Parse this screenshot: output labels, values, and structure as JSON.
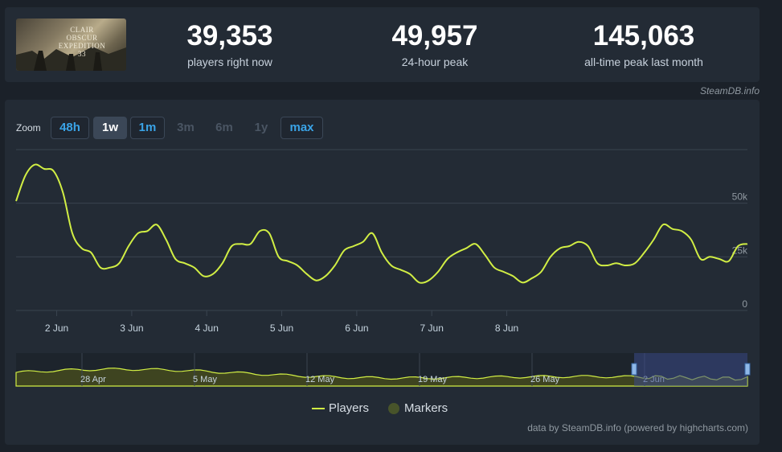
{
  "game": {
    "title_text": "CLAIR OBSCUR EXPEDITION 33"
  },
  "stats": [
    {
      "value": "39,353",
      "label": "players right now"
    },
    {
      "value": "49,957",
      "label": "24-hour peak"
    },
    {
      "value": "145,063",
      "label": "all-time peak last month"
    }
  ],
  "source_link": "SteamDB.info",
  "zoom": {
    "label": "Zoom",
    "buttons": [
      {
        "label": "48h",
        "state": "enabled"
      },
      {
        "label": "1w",
        "state": "active"
      },
      {
        "label": "1m",
        "state": "enabled"
      },
      {
        "label": "3m",
        "state": "disabled"
      },
      {
        "label": "6m",
        "state": "disabled"
      },
      {
        "label": "1y",
        "state": "disabled"
      },
      {
        "label": "max",
        "state": "enabled"
      }
    ]
  },
  "legend": {
    "players": "Players",
    "markers": "Markers"
  },
  "footer": "data by SteamDB.info (powered by highcharts.com)",
  "colors": {
    "line": "#d1ee44",
    "markers": "#48542a",
    "navigator_fill": "#3e4420",
    "navigator_selection": "#3a4a8a",
    "grid": "#3a4450",
    "background": "#232b35"
  },
  "chart_data": {
    "type": "line",
    "series": [
      {
        "name": "Players"
      }
    ],
    "x_start": "2025-06-01T11:00",
    "x_step_hours": 3,
    "values": [
      51000,
      63000,
      68000,
      66000,
      65000,
      55000,
      36000,
      29000,
      27000,
      20000,
      20000,
      22000,
      30000,
      36000,
      37000,
      40000,
      33000,
      24000,
      22000,
      20000,
      16000,
      17000,
      22000,
      30000,
      31000,
      31000,
      37000,
      36000,
      25000,
      23000,
      21000,
      17000,
      14000,
      16000,
      21000,
      28000,
      30000,
      32000,
      36000,
      27000,
      21000,
      19000,
      17000,
      13000,
      14000,
      18000,
      24000,
      27000,
      29000,
      31000,
      26000,
      20000,
      18000,
      16000,
      13000,
      15000,
      18000,
      25000,
      29000,
      30000,
      32000,
      30000,
      22000,
      21000,
      22000,
      21000,
      22000,
      27000,
      33000,
      40000,
      38000,
      37000,
      33000,
      24000,
      25000,
      24000,
      23000,
      30000,
      31000
    ],
    "x_ticks": [
      "2 Jun",
      "3 Jun",
      "4 Jun",
      "5 Jun",
      "6 Jun",
      "7 Jun",
      "8 Jun"
    ],
    "y_ticks": [
      {
        "value": 0,
        "label": "0"
      },
      {
        "value": 25000,
        "label": "25k"
      },
      {
        "value": 50000,
        "label": "50k"
      }
    ],
    "ylim": [
      0,
      75000
    ],
    "navigator": {
      "ticks": [
        "28 Apr",
        "5 May",
        "12 May",
        "19 May",
        "26 May",
        "2 Jun"
      ]
    }
  }
}
